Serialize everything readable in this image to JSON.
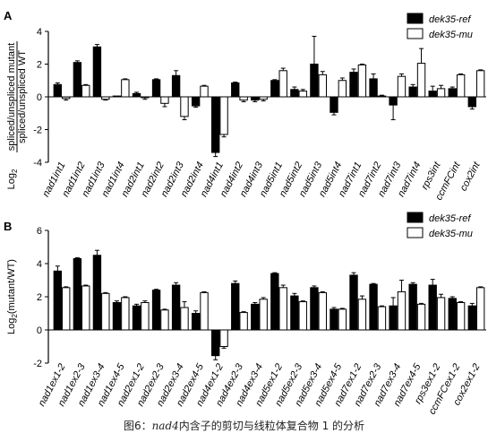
{
  "figure": {
    "caption_prefix": "图6：",
    "caption_gene": "nad4",
    "caption_suffix": "内含子的剪切与线粒体复合物 1 的分析"
  },
  "chart_data": [
    {
      "panel": "A",
      "type": "bar",
      "ylabel": "Log2(spliced/unspliced mutant / spliced/unspliced WT)",
      "ylabel_lines": [
        "spliced/unspliced mutant",
        "spliced/unspliced WT"
      ],
      "ylabel_prefix": "Log",
      "ylabel_sub": "2",
      "ylim": [
        -4,
        4
      ],
      "yticks": [
        -4,
        -2,
        0,
        2,
        4
      ],
      "legend_position": "top-right",
      "categories": [
        "nad1int1",
        "nad1int2",
        "nad1int3",
        "nad1int4",
        "nad2int1",
        "nad2int2",
        "nad2int3",
        "nad2int4",
        "nad4int1",
        "nad4int2",
        "nad4int3",
        "nad5int1",
        "nad5int2",
        "nad5int3",
        "nad5int4",
        "nad7int1",
        "nad7int2",
        "nad7int3",
        "nad7int4",
        "rps3int",
        "ccmFCint",
        "cox2int"
      ],
      "series": [
        {
          "name": "dek35-ref",
          "color": "#000000",
          "values": [
            0.75,
            2.1,
            3.05,
            0.05,
            0.2,
            1.05,
            1.3,
            -0.55,
            -3.4,
            0.85,
            -0.2,
            1.0,
            0.45,
            2.0,
            -0.95,
            1.5,
            1.1,
            -0.5,
            0.6,
            0.35,
            0.5,
            -0.6
          ],
          "errors": [
            0.1,
            0.1,
            0.15,
            0.0,
            0.08,
            0.05,
            0.3,
            0.08,
            0.25,
            0.05,
            0.1,
            0.05,
            0.15,
            1.7,
            0.15,
            0.2,
            0.3,
            0.9,
            0.15,
            0.3,
            0.1,
            0.15
          ]
        },
        {
          "name": "dek35-mu",
          "color": "#ffffff",
          "values": [
            -0.1,
            0.7,
            -0.15,
            1.05,
            -0.05,
            -0.4,
            -1.2,
            0.65,
            -2.3,
            -0.2,
            -0.15,
            1.6,
            0.35,
            1.35,
            1.0,
            1.95,
            0.05,
            1.25,
            2.05,
            0.5,
            1.35,
            1.6
          ],
          "errors": [
            0.1,
            0.05,
            0.05,
            0.05,
            0.1,
            0.2,
            0.2,
            0.05,
            0.15,
            0.1,
            0.1,
            0.15,
            0.1,
            0.2,
            0.15,
            0.05,
            0.05,
            0.15,
            0.9,
            0.2,
            0.05,
            0.05
          ]
        }
      ]
    },
    {
      "panel": "B",
      "type": "bar",
      "ylabel": "Log2(mutant/WT)",
      "ylabel_prefix": "Log",
      "ylabel_sub": "2",
      "ylabel_suffix": "(mutant/WT)",
      "ylim": [
        -2,
        6
      ],
      "yticks": [
        -2,
        0,
        2,
        4,
        6
      ],
      "legend_position": "top-right",
      "categories": [
        "nad1ex1-2",
        "nad1ex2-3",
        "nad1ex3-4",
        "nad1ex4-5",
        "nad2ex1-2",
        "nad2ex2-3",
        "nad2ex3-4",
        "nad2ex4-5",
        "nad4ex1-2",
        "nad4ex2-3",
        "nad4ex3-4",
        "nad5ex1-2",
        "nad5ex2-3",
        "nad5ex3-4",
        "nad5ex4-5",
        "nad7ex1-2",
        "nad7ex2-3",
        "nad7ex3-4",
        "nad7ex4-5",
        "rps3ex1-2",
        "ccmFCex1-2",
        "cox2ex1-2"
      ],
      "series": [
        {
          "name": "dek35-ref",
          "color": "#000000",
          "values": [
            3.55,
            4.3,
            4.5,
            1.65,
            1.45,
            2.4,
            2.7,
            1.0,
            -1.55,
            2.8,
            1.55,
            3.4,
            2.05,
            2.55,
            1.25,
            3.3,
            2.75,
            1.45,
            2.75,
            2.7,
            1.9,
            1.45
          ],
          "errors": [
            0.3,
            0.05,
            0.3,
            0.1,
            0.1,
            0.05,
            0.15,
            0.15,
            0.25,
            0.15,
            0.1,
            0.05,
            0.15,
            0.1,
            0.1,
            0.15,
            0.05,
            0.5,
            0.1,
            0.35,
            0.1,
            0.15
          ]
        },
        {
          "name": "dek35-mu",
          "color": "#ffffff",
          "values": [
            2.55,
            2.65,
            2.2,
            1.95,
            1.65,
            1.2,
            1.35,
            2.25,
            -1.0,
            1.05,
            1.85,
            2.55,
            1.7,
            2.25,
            1.25,
            1.85,
            1.4,
            2.3,
            1.55,
            1.95,
            1.65,
            2.55
          ],
          "errors": [
            0.05,
            0.05,
            0.05,
            0.05,
            0.1,
            0.05,
            0.35,
            0.05,
            0.1,
            0.05,
            0.1,
            0.15,
            0.05,
            0.05,
            0.05,
            0.2,
            0.05,
            0.7,
            0.05,
            0.2,
            0.05,
            0.05
          ]
        }
      ]
    }
  ]
}
